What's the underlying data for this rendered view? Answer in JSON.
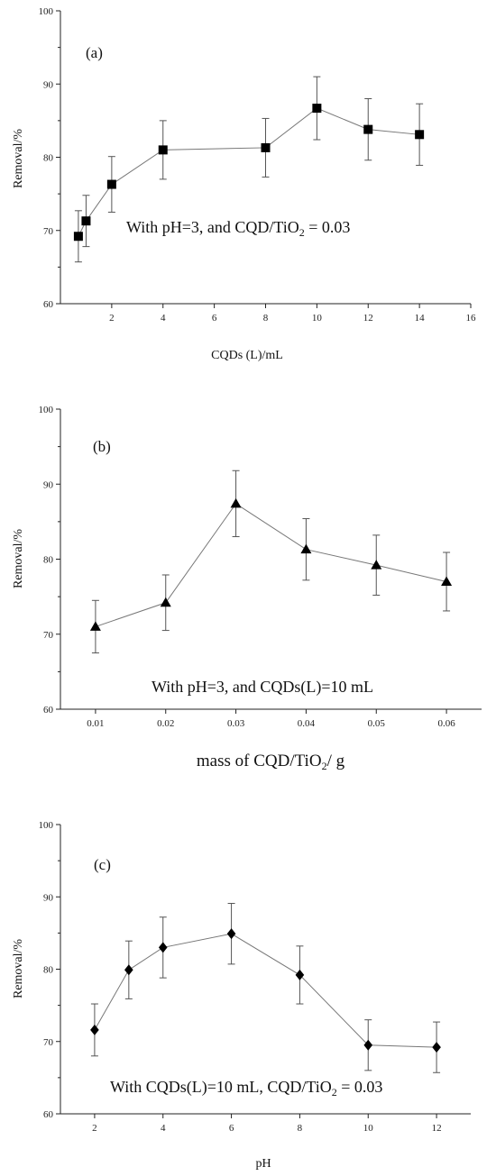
{
  "chart_data": [
    {
      "type": "line",
      "panel_label": "(a)",
      "xlabel": "CQDs (L)/mL",
      "ylabel": "Removal/%",
      "annotation": {
        "text": "With pH=3, and CQD/TiO",
        "sub": "2",
        "tail": " = 0.03"
      },
      "xlim": [
        0,
        16
      ],
      "ylim": [
        60,
        100
      ],
      "x_ticks": [
        "2",
        "4",
        "6",
        "8",
        "10",
        "12",
        "14",
        "16"
      ],
      "y_ticks": [
        "60",
        "70",
        "80",
        "90",
        "100"
      ],
      "marker": "square",
      "x": [
        0.7,
        1,
        2,
        4,
        8,
        10,
        12,
        14
      ],
      "y": [
        69.2,
        71.3,
        76.3,
        81.0,
        81.3,
        86.7,
        83.8,
        83.1
      ],
      "error": [
        3.5,
        3.5,
        3.8,
        4.0,
        4.0,
        4.3,
        4.2,
        4.2
      ]
    },
    {
      "type": "line",
      "panel_label": "(b)",
      "xlabel": "mass of CQD/TiO",
      "xlabel_sub": "2",
      "xlabel_tail": "/ g",
      "ylabel": "Removal/%",
      "annotation": {
        "text": "With pH=3, and CQDs(L)=10 mL",
        "sub": "",
        "tail": ""
      },
      "xlim": [
        0.005,
        0.065
      ],
      "ylim": [
        60,
        100
      ],
      "x_ticks": [
        "0.01",
        "0.02",
        "0.03",
        "0.04",
        "0.05",
        "0.06"
      ],
      "x_tick_values": [
        0.01,
        0.02,
        0.03,
        0.04,
        0.05,
        0.06
      ],
      "y_ticks": [
        "60",
        "70",
        "80",
        "90",
        "100"
      ],
      "marker": "triangle",
      "x": [
        0.01,
        0.02,
        0.03,
        0.04,
        0.05,
        0.06
      ],
      "y": [
        71.0,
        74.2,
        87.4,
        81.3,
        79.2,
        77.0
      ],
      "error": [
        3.5,
        3.7,
        4.4,
        4.1,
        4.0,
        3.9
      ]
    },
    {
      "type": "line",
      "panel_label": "(c)",
      "xlabel": "pH",
      "ylabel": "Removal/%",
      "annotation": {
        "text": "With CQDs(L)=10 mL, CQD/TiO",
        "sub": "2",
        "tail": " = 0.03"
      },
      "xlim": [
        1,
        13
      ],
      "ylim": [
        60,
        100
      ],
      "x_ticks": [
        "2",
        "4",
        "6",
        "8",
        "10",
        "12"
      ],
      "x_tick_values": [
        2,
        4,
        6,
        8,
        10,
        12
      ],
      "y_ticks": [
        "60",
        "70",
        "80",
        "90",
        "100"
      ],
      "marker": "diamond",
      "x": [
        2,
        3,
        4,
        6,
        8,
        10,
        12
      ],
      "y": [
        71.6,
        79.9,
        83.0,
        84.9,
        79.2,
        69.5,
        69.2
      ],
      "error": [
        3.6,
        4.0,
        4.2,
        4.2,
        4.0,
        3.5,
        3.5
      ]
    }
  ]
}
